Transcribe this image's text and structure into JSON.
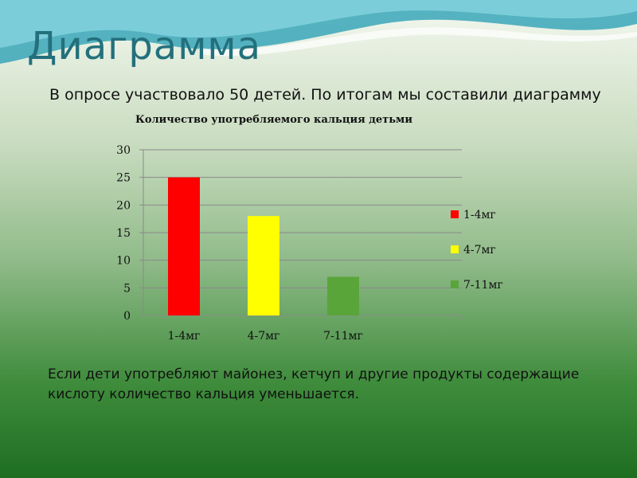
{
  "slide": {
    "title": "Диаграмма",
    "intro": "В опросе участвовало 50 детей. По итогам мы составили диаграмму",
    "footer": "Если дети употребляют майонез, кетчуп и другие продукты содержащие кислоту количество кальция уменьшается."
  },
  "chart_data": {
    "type": "bar",
    "title": "Количество употребляемого кальция детьми",
    "categories": [
      "1-4мг",
      "4-7мг",
      "7-11мг"
    ],
    "values": [
      25,
      18,
      7
    ],
    "colors": [
      "#ff0000",
      "#ffff00",
      "#5aa53a"
    ],
    "legend": [
      "1-4мг",
      "4-7мг",
      "7-11мг"
    ],
    "legend_position": "right",
    "ylim": [
      0,
      30
    ],
    "yticks": [
      0,
      5,
      10,
      15,
      20,
      25,
      30
    ],
    "grid": "horizontal",
    "xlabel": "",
    "ylabel": ""
  }
}
